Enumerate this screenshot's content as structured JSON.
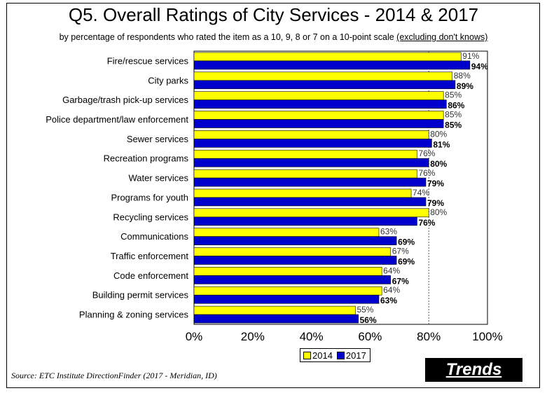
{
  "title": "Q5. Overall Ratings of City Services - 2014 & 2017",
  "subtitle_main": "by percentage of respondents who rated the item as a 10, 9, 8 or 7 on a 10-point scale ",
  "subtitle_underlined": "(excluding don't knows)",
  "source": "Source:  ETC Institute DirectionFinder (2017 - Meridian, ID)",
  "badge": "Trends",
  "colors": {
    "s2014": "#FFFF00",
    "s2017": "#0000CC",
    "reference_line": "#555555"
  },
  "chart_data": {
    "type": "bar",
    "orientation": "horizontal",
    "categories": [
      "Fire/rescue services",
      "City parks",
      "Garbage/trash pick-up services",
      "Police department/law enforcement",
      "Sewer services",
      "Recreation programs",
      "Water services",
      "Programs for youth",
      "Recycling services",
      "Communications",
      "Traffic enforcement",
      "Code enforcement",
      "Building permit services",
      "Planning & zoning services"
    ],
    "series": [
      {
        "name": "2014",
        "values": [
          91,
          88,
          85,
          85,
          80,
          76,
          76,
          74,
          80,
          63,
          67,
          64,
          64,
          55
        ],
        "labels": [
          "91%",
          "88%",
          "85%",
          "85%",
          "80%",
          "76%",
          "76%",
          "74%",
          "80%",
          "63%",
          "67%",
          "64%",
          "64%",
          "55%"
        ]
      },
      {
        "name": "2017",
        "values": [
          94,
          89,
          86,
          85,
          81,
          80,
          79,
          79,
          76,
          69,
          69,
          67,
          63,
          56
        ],
        "labels": [
          "94%",
          "89%",
          "86%",
          "85%",
          "81%",
          "80%",
          "79%",
          "79%",
          "76%",
          "69%",
          "69%",
          "67%",
          "63%",
          "56%"
        ]
      }
    ],
    "xlim": [
      0,
      100
    ],
    "xticks": [
      0,
      20,
      40,
      60,
      80,
      100
    ],
    "xtick_labels": [
      "0%",
      "20%",
      "40%",
      "60%",
      "80%",
      "100%"
    ],
    "reference_line_x": 80,
    "grid": false,
    "legend_position": "bottom-center"
  }
}
